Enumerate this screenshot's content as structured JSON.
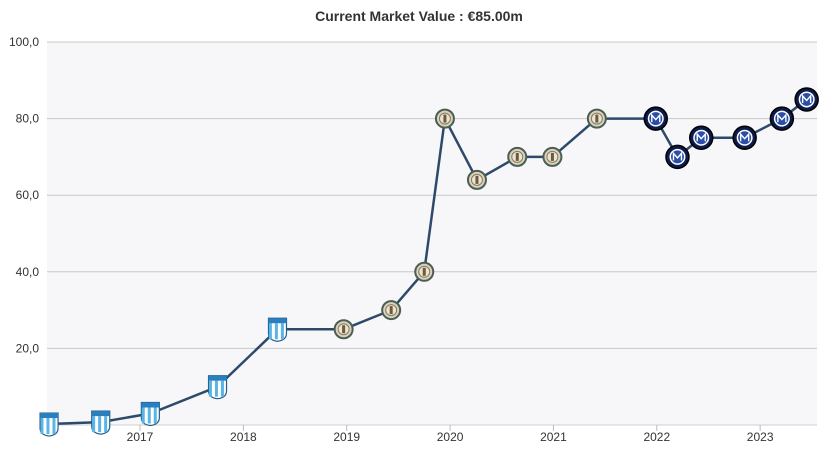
{
  "chart_data": {
    "type": "line",
    "title": "Current Market Value : €85.00m",
    "xlabel": "",
    "ylabel": "",
    "ylim": [
      0,
      100
    ],
    "yticks": [
      "20,0",
      "40,0",
      "60,0",
      "80,0",
      "100,0"
    ],
    "ytick_values": [
      20,
      40,
      60,
      80,
      100
    ],
    "xticks": [
      "2017",
      "2018",
      "2019",
      "2020",
      "2021",
      "2022",
      "2023"
    ],
    "xtick_values": [
      2017.0,
      2018.0,
      2019.0,
      2020.0,
      2021.0,
      2022.0,
      2023.0
    ],
    "xlim": [
      2016.1,
      2023.55
    ],
    "grid": true,
    "legend": "none",
    "colors": {
      "line": "#2e4a6b",
      "plot_background": "#f7f7f9",
      "gridline": "#c8c8c8"
    },
    "series": [
      {
        "values": [
          {
            "x": 2016.12,
            "y": 0.25,
            "marker": "club-a-crest"
          },
          {
            "x": 2016.62,
            "y": 0.75,
            "marker": "club-a-crest"
          },
          {
            "x": 2017.1,
            "y": 3,
            "marker": "club-a-crest"
          },
          {
            "x": 2017.75,
            "y": 10,
            "marker": "club-a-crest"
          },
          {
            "x": 2018.33,
            "y": 25,
            "marker": "club-a-crest"
          },
          {
            "x": 2018.97,
            "y": 25,
            "marker": "club-b-crest"
          },
          {
            "x": 2019.43,
            "y": 30,
            "marker": "club-b-crest"
          },
          {
            "x": 2019.75,
            "y": 40,
            "marker": "club-b-crest"
          },
          {
            "x": 2019.95,
            "y": 80,
            "marker": "club-b-crest"
          },
          {
            "x": 2020.26,
            "y": 64,
            "marker": "club-b-crest"
          },
          {
            "x": 2020.65,
            "y": 70,
            "marker": "club-b-crest"
          },
          {
            "x": 2020.99,
            "y": 70,
            "marker": "club-b-crest"
          },
          {
            "x": 2021.42,
            "y": 80,
            "marker": "club-b-crest"
          },
          {
            "x": 2021.99,
            "y": 80,
            "marker": "club-c-crest"
          },
          {
            "x": 2022.2,
            "y": 70,
            "marker": "club-c-crest"
          },
          {
            "x": 2022.43,
            "y": 75,
            "marker": "club-c-crest"
          },
          {
            "x": 2022.85,
            "y": 75,
            "marker": "club-c-crest"
          },
          {
            "x": 2023.21,
            "y": 80,
            "marker": "club-c-crest"
          },
          {
            "x": 2023.45,
            "y": 85,
            "marker": "club-c-crest"
          }
        ]
      }
    ]
  }
}
